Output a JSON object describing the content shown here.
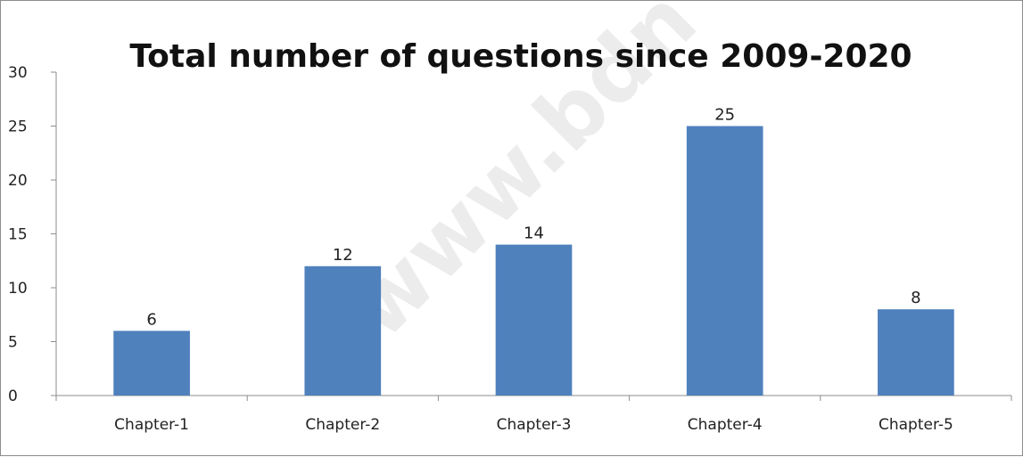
{
  "watermark": "www.bdn",
  "chart_data": {
    "type": "bar",
    "title": "Total number of questions since 2009-2020",
    "xlabel": "",
    "ylabel": "",
    "categories": [
      "Chapter-1",
      "Chapter-2",
      "Chapter-3",
      "Chapter-4",
      "Chapter-5"
    ],
    "values": [
      6,
      12,
      14,
      25,
      8
    ],
    "ylim": [
      0,
      30
    ],
    "yticks": [
      0,
      5,
      10,
      15,
      20,
      25,
      30
    ],
    "grid": false,
    "legend": "none",
    "bar_color": "#4f81bd",
    "data_labels": true
  }
}
